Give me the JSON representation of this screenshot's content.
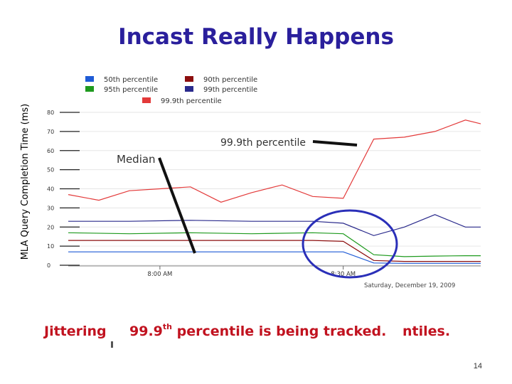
{
  "title": "Incast Really Happens",
  "y_axis_label": "MLA Query Completion Time (ms)",
  "legend": [
    {
      "label": "50th percentile",
      "color": "#1f5bd6"
    },
    {
      "label": "90th percentile",
      "color": "#8c0e0e"
    },
    {
      "label": "95th percentile",
      "color": "#1e9a1e"
    },
    {
      "label": "99th percentile",
      "color": "#2a2a8c"
    },
    {
      "label": "99.9th percentile",
      "color": "#e33a3a"
    }
  ],
  "annotations": {
    "p999": "99.9th percentile",
    "median": "Median"
  },
  "x_ticks": [
    "8:00 AM",
    "8:30 AM"
  ],
  "date_label": "Saturday, December 19, 2009",
  "caption": {
    "part1": "Jittering",
    "part2_num": "99.9",
    "part2_sup": "th",
    "part2_rest": " percentile is being tracked.",
    "part3": "ntiles."
  },
  "page_number": "14",
  "chart_data": {
    "type": "line",
    "ylim": [
      0,
      80
    ],
    "y_ticks": [
      0,
      10,
      20,
      30,
      40,
      50,
      60,
      70,
      80
    ],
    "series": [
      {
        "name": "99.9th percentile",
        "color": "#e33a3a",
        "points": [
          [
            0,
            37
          ],
          [
            1,
            34
          ],
          [
            2,
            39
          ],
          [
            3,
            40
          ],
          [
            4,
            41
          ],
          [
            5,
            33
          ],
          [
            6,
            38
          ],
          [
            7,
            42
          ],
          [
            8,
            36
          ],
          [
            9,
            35
          ],
          [
            10,
            66
          ],
          [
            11,
            67
          ],
          [
            12,
            70
          ],
          [
            13,
            76
          ],
          [
            13.5,
            74
          ]
        ]
      },
      {
        "name": "99th percentile",
        "color": "#2a2a8c",
        "points": [
          [
            0,
            23
          ],
          [
            2,
            23
          ],
          [
            4,
            23.5
          ],
          [
            6,
            23
          ],
          [
            8,
            23
          ],
          [
            9,
            22
          ],
          [
            10,
            15.5
          ],
          [
            11,
            20
          ],
          [
            12,
            26.5
          ],
          [
            13,
            20
          ],
          [
            13.5,
            20
          ]
        ]
      },
      {
        "name": "95th percentile",
        "color": "#1e9a1e",
        "points": [
          [
            0,
            17
          ],
          [
            2,
            16.5
          ],
          [
            4,
            17
          ],
          [
            6,
            16.5
          ],
          [
            8,
            17
          ],
          [
            9,
            16.5
          ],
          [
            10,
            5.5
          ],
          [
            11,
            4.5
          ],
          [
            12,
            4.8
          ],
          [
            13,
            5
          ],
          [
            13.5,
            5
          ]
        ]
      },
      {
        "name": "90th percentile",
        "color": "#8c0e0e",
        "points": [
          [
            0,
            13
          ],
          [
            2,
            13
          ],
          [
            4,
            13
          ],
          [
            6,
            13
          ],
          [
            8,
            13
          ],
          [
            9,
            12.5
          ],
          [
            10,
            2.5
          ],
          [
            11,
            2
          ],
          [
            12,
            2
          ],
          [
            13,
            2
          ],
          [
            13.5,
            2
          ]
        ]
      },
      {
        "name": "50th percentile",
        "color": "#1f5bd6",
        "points": [
          [
            0,
            7
          ],
          [
            2,
            7
          ],
          [
            4,
            7
          ],
          [
            6,
            7
          ],
          [
            8,
            7
          ],
          [
            9,
            7
          ],
          [
            10,
            1.2
          ],
          [
            11,
            1
          ],
          [
            12,
            1
          ],
          [
            13,
            1
          ],
          [
            13.5,
            1
          ]
        ]
      }
    ],
    "x_tick_positions": [
      3,
      9
    ]
  }
}
